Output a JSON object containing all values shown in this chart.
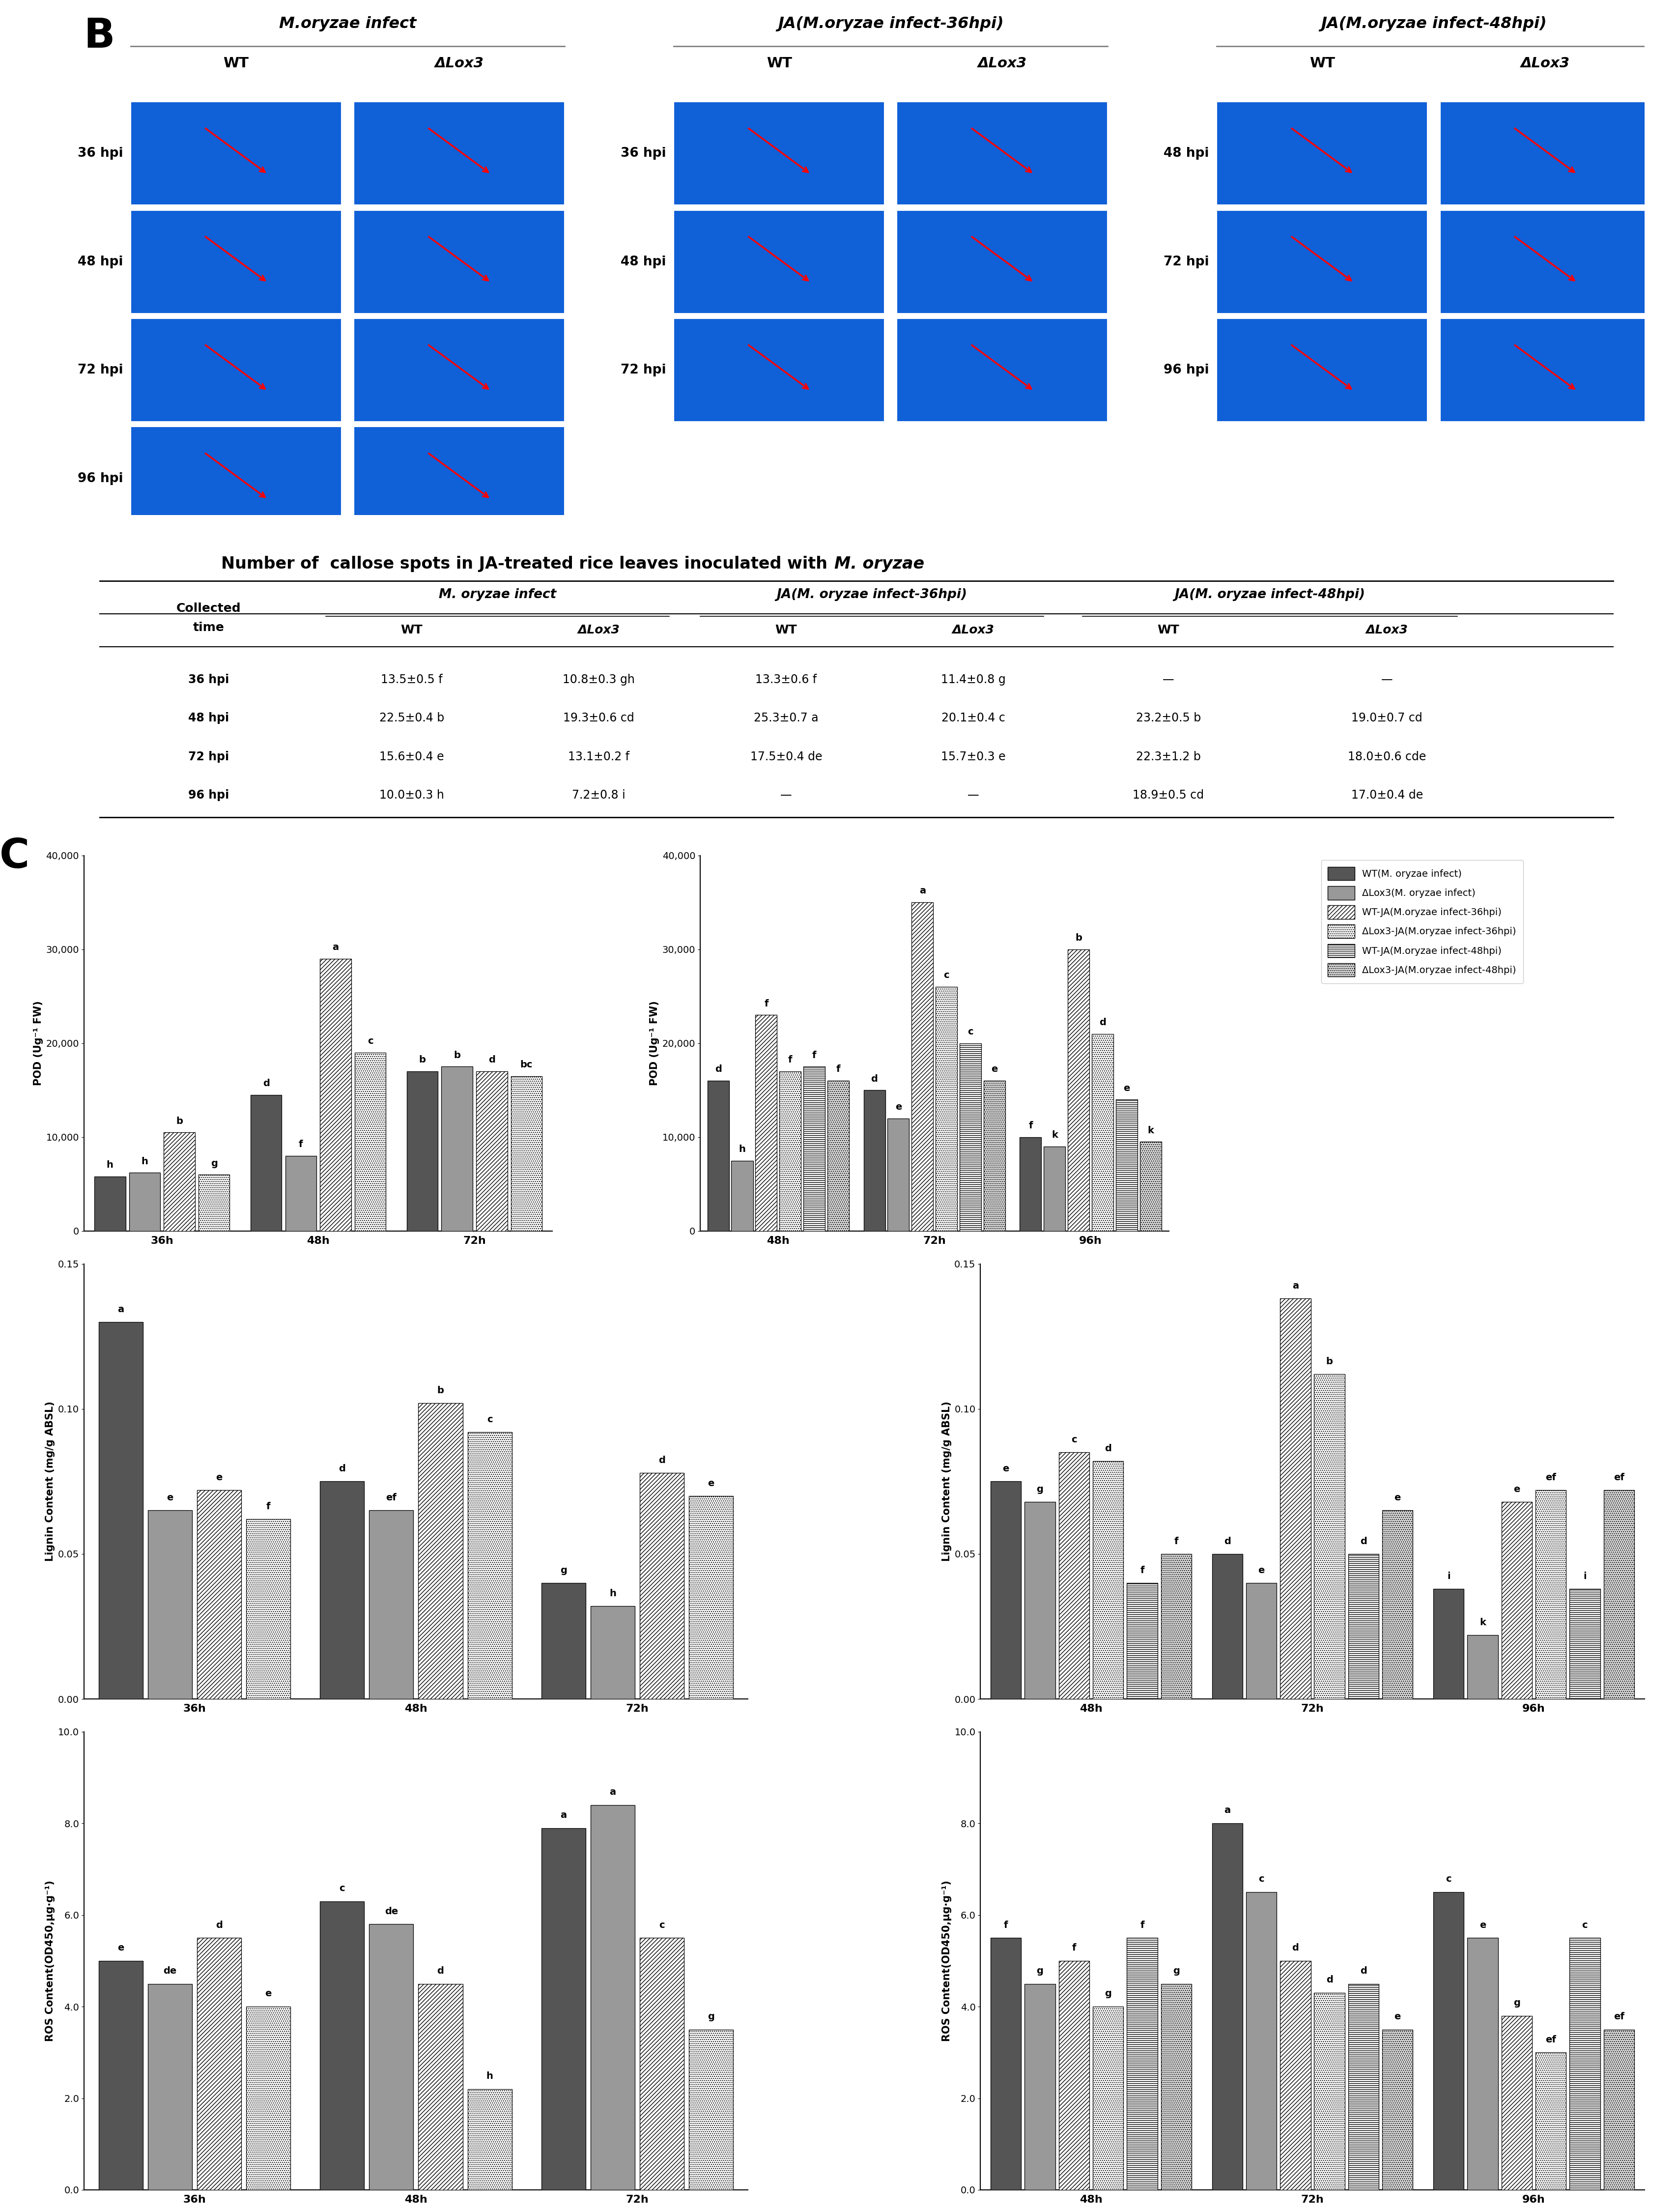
{
  "table_title_main": "Number of  callose spots in JA-treated rice leaves inoculated with ",
  "table_title_italic": "M. oryzae",
  "table_rows": [
    [
      "36 hpi",
      "13.5±0.5 f",
      "10.8±0.3 gh",
      "13.3±0.6 f",
      "11.4±0.8 g",
      "—",
      "—"
    ],
    [
      "48 hpi",
      "22.5±0.4 b",
      "19.3±0.6 cd",
      "25.3±0.7 a",
      "20.1±0.4 c",
      "23.2±0.5 b",
      "19.0±0.7 cd"
    ],
    [
      "72 hpi",
      "15.6±0.4 e",
      "13.1±0.2 f",
      "17.5±0.4 de",
      "15.7±0.3 e",
      "22.3±1.2 b",
      "18.0±0.6 cde"
    ],
    [
      "96 hpi",
      "10.0±0.3 h",
      "7.2±0.8 i",
      "—",
      "—",
      "18.9±0.5 cd",
      "17.0±0.4 de"
    ]
  ],
  "pod_left": {
    "groups": [
      "36h",
      "48h",
      "72h"
    ],
    "series": {
      "WT_infect": [
        5800,
        14500,
        17000
      ],
      "Lox3_infect": [
        6200,
        8000,
        17500
      ],
      "WT_JA36": [
        10500,
        29000,
        17000
      ],
      "Lox3_JA36": [
        6000,
        19000,
        16500
      ]
    },
    "ylabel": "POD (Ug⁻¹ FW)",
    "ylim": [
      0,
      40000
    ],
    "yticks": [
      0,
      10000,
      20000,
      30000,
      40000
    ],
    "letter_labels": {
      "WT_infect": [
        "h",
        "d",
        "b"
      ],
      "Lox3_infect": [
        "h",
        "f",
        "b"
      ],
      "WT_JA36": [
        "b",
        "a",
        "d"
      ],
      "Lox3_JA36": [
        "g",
        "c",
        "bc"
      ]
    }
  },
  "pod_right": {
    "groups": [
      "48h",
      "72h",
      "96h"
    ],
    "series": {
      "WT_infect": [
        16000,
        15000,
        10000
      ],
      "Lox3_infect": [
        7500,
        12000,
        9000
      ],
      "WT_JA36": [
        23000,
        35000,
        30000
      ],
      "Lox3_JA36": [
        17000,
        26000,
        21000
      ],
      "WT_JA48": [
        17500,
        20000,
        14000
      ],
      "Lox3_JA48": [
        16000,
        16000,
        9500
      ]
    },
    "ylabel": "POD (Ug⁻¹ FW)",
    "ylim": [
      0,
      40000
    ],
    "yticks": [
      0,
      10000,
      20000,
      30000,
      40000
    ],
    "letter_labels": {
      "WT_infect": [
        "d",
        "d",
        "f"
      ],
      "Lox3_infect": [
        "h",
        "e",
        "k"
      ],
      "WT_JA36": [
        "f",
        "a",
        "b"
      ],
      "Lox3_JA36": [
        "f",
        "c",
        "d"
      ],
      "WT_JA48": [
        "f",
        "c",
        "e"
      ],
      "Lox3_JA48": [
        "f",
        "e",
        "k"
      ]
    }
  },
  "lignin_left": {
    "groups": [
      "36h",
      "48h",
      "72h"
    ],
    "series": {
      "WT_infect": [
        0.13,
        0.075,
        0.04
      ],
      "Lox3_infect": [
        0.065,
        0.065,
        0.032
      ],
      "WT_JA36": [
        0.072,
        0.102,
        0.078
      ],
      "Lox3_JA36": [
        0.062,
        0.092,
        0.07
      ]
    },
    "ylabel": "Lignin Content (mg/g ABSL)",
    "ylim": [
      0,
      0.15
    ],
    "yticks": [
      0.0,
      0.05,
      0.1,
      0.15
    ],
    "letter_labels": {
      "WT_infect": [
        "a",
        "d",
        "g"
      ],
      "Lox3_infect": [
        "e",
        "ef",
        "h"
      ],
      "WT_JA36": [
        "e",
        "b",
        "d"
      ],
      "Lox3_JA36": [
        "f",
        "c",
        "e"
      ]
    }
  },
  "lignin_right": {
    "groups": [
      "48h",
      "72h",
      "96h"
    ],
    "series": {
      "WT_infect": [
        0.075,
        0.05,
        0.038
      ],
      "Lox3_infect": [
        0.068,
        0.04,
        0.022
      ],
      "WT_JA36": [
        0.085,
        0.138,
        0.068
      ],
      "Lox3_JA36": [
        0.082,
        0.112,
        0.072
      ],
      "WT_JA48": [
        0.04,
        0.05,
        0.038
      ],
      "Lox3_JA48": [
        0.05,
        0.065,
        0.072
      ]
    },
    "ylabel": "Lignin Content (mg/g ABSL)",
    "ylim": [
      0,
      0.15
    ],
    "yticks": [
      0.0,
      0.05,
      0.1,
      0.15
    ],
    "letter_labels": {
      "WT_infect": [
        "e",
        "d",
        "i"
      ],
      "Lox3_infect": [
        "g",
        "e",
        "k"
      ],
      "WT_JA36": [
        "c",
        "a",
        "e"
      ],
      "Lox3_JA36": [
        "d",
        "b",
        "ef"
      ],
      "WT_JA48": [
        "f",
        "d",
        "i"
      ],
      "Lox3_JA48": [
        "f",
        "e",
        "ef"
      ]
    }
  },
  "ros_left": {
    "groups": [
      "36h",
      "48h",
      "72h"
    ],
    "series": {
      "WT_infect": [
        5.0,
        6.3,
        7.9
      ],
      "Lox3_infect": [
        4.5,
        5.8,
        8.4
      ],
      "WT_JA36": [
        5.5,
        4.5,
        5.5
      ],
      "Lox3_JA36": [
        4.0,
        2.2,
        3.5
      ]
    },
    "ylabel": "ROS Content(OD450,μg·g⁻¹)",
    "ylim": [
      0,
      10.0
    ],
    "yticks": [
      0,
      2.0,
      4.0,
      6.0,
      8.0,
      10.0
    ],
    "letter_labels": {
      "WT_infect": [
        "e",
        "c",
        "a"
      ],
      "Lox3_infect": [
        "de",
        "de",
        "a"
      ],
      "WT_JA36": [
        "d",
        "d",
        "c"
      ],
      "Lox3_JA36": [
        "e",
        "h",
        "g"
      ]
    }
  },
  "ros_right": {
    "groups": [
      "48h",
      "72h",
      "96h"
    ],
    "series": {
      "WT_infect": [
        5.5,
        8.0,
        6.5
      ],
      "Lox3_infect": [
        4.5,
        6.5,
        5.5
      ],
      "WT_JA36": [
        5.0,
        5.0,
        3.8
      ],
      "Lox3_JA36": [
        4.0,
        4.3,
        3.0
      ],
      "WT_JA48": [
        5.5,
        4.5,
        5.5
      ],
      "Lox3_JA48": [
        4.5,
        3.5,
        3.5
      ]
    },
    "ylabel": "ROS Content(OD450,μg·g⁻¹)",
    "ylim": [
      0,
      10.0
    ],
    "yticks": [
      0,
      2.0,
      4.0,
      6.0,
      8.0,
      10.0
    ],
    "letter_labels": {
      "WT_infect": [
        "f",
        "a",
        "c"
      ],
      "Lox3_infect": [
        "g",
        "c",
        "e"
      ],
      "WT_JA36": [
        "f",
        "d",
        "g"
      ],
      "Lox3_JA36": [
        "g",
        "d",
        "ef"
      ],
      "WT_JA48": [
        "f",
        "d",
        "c"
      ],
      "Lox3_JA48": [
        "g",
        "e",
        "ef"
      ]
    }
  },
  "legend_entries": [
    "WT(M. oryzae infect)",
    "ΔLox3(M. oryzae infect)",
    "WT-JA(M.oryzae infect-36hpi)",
    "ΔLox3-JA(M.oryzae infect-36hpi)",
    "WT-JA(M.oryzae infect-48hpi)",
    "ΔLox3-JA(M.oryzae infect-48hpi)"
  ],
  "bar_styles": {
    "WT_infect": {
      "color": "#555555",
      "hatch": ""
    },
    "Lox3_infect": {
      "color": "#999999",
      "hatch": ""
    },
    "WT_JA36": {
      "color": "#ffffff",
      "hatch": "////"
    },
    "Lox3_JA36": {
      "color": "#ffffff",
      "hatch": "...."
    },
    "WT_JA48": {
      "color": "#ffffff",
      "hatch": "----"
    },
    "Lox3_JA48": {
      "color": "#dddddd",
      "hatch": "...."
    }
  },
  "legend_styles": [
    {
      "color": "#555555",
      "hatch": ""
    },
    {
      "color": "#999999",
      "hatch": ""
    },
    {
      "color": "#ffffff",
      "hatch": "////"
    },
    {
      "color": "#ffffff",
      "hatch": "...."
    },
    {
      "color": "#ffffff",
      "hatch": "----"
    },
    {
      "color": "#dddddd",
      "hatch": "...."
    }
  ]
}
